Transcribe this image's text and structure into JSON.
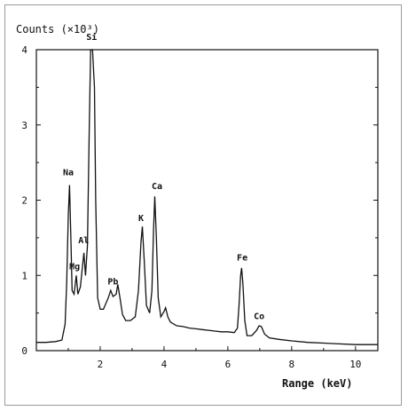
{
  "chart_data": {
    "type": "line",
    "title": "",
    "ylabel": "Counts (×10³)",
    "xlabel": "Range (keV)",
    "xlim": [
      0,
      10.7
    ],
    "ylim": [
      0,
      4
    ],
    "x_ticks": [
      2,
      4,
      6,
      8,
      10
    ],
    "y_ticks": [
      0,
      1,
      2,
      3,
      4
    ],
    "grid": false,
    "series": [
      {
        "points": [
          [
            0.0,
            0.11
          ],
          [
            0.3,
            0.11
          ],
          [
            0.6,
            0.12
          ],
          [
            0.8,
            0.14
          ],
          [
            0.9,
            0.35
          ],
          [
            0.95,
            0.9
          ],
          [
            1.0,
            1.8
          ],
          [
            1.04,
            2.2
          ],
          [
            1.08,
            1.5
          ],
          [
            1.12,
            0.8
          ],
          [
            1.18,
            0.75
          ],
          [
            1.25,
            1.0
          ],
          [
            1.3,
            0.75
          ],
          [
            1.38,
            0.85
          ],
          [
            1.44,
            1.1
          ],
          [
            1.49,
            1.3
          ],
          [
            1.54,
            1.0
          ],
          [
            1.6,
            1.4
          ],
          [
            1.66,
            3.0
          ],
          [
            1.7,
            4.0
          ],
          [
            1.76,
            4.0
          ],
          [
            1.82,
            3.5
          ],
          [
            1.86,
            2.0
          ],
          [
            1.92,
            0.7
          ],
          [
            2.0,
            0.55
          ],
          [
            2.1,
            0.55
          ],
          [
            2.25,
            0.7
          ],
          [
            2.33,
            0.8
          ],
          [
            2.4,
            0.72
          ],
          [
            2.5,
            0.75
          ],
          [
            2.55,
            0.88
          ],
          [
            2.62,
            0.7
          ],
          [
            2.7,
            0.48
          ],
          [
            2.8,
            0.4
          ],
          [
            2.95,
            0.4
          ],
          [
            3.1,
            0.45
          ],
          [
            3.2,
            0.8
          ],
          [
            3.28,
            1.45
          ],
          [
            3.32,
            1.65
          ],
          [
            3.38,
            1.2
          ],
          [
            3.45,
            0.6
          ],
          [
            3.55,
            0.5
          ],
          [
            3.62,
            0.8
          ],
          [
            3.67,
            1.6
          ],
          [
            3.71,
            2.05
          ],
          [
            3.76,
            1.5
          ],
          [
            3.82,
            0.7
          ],
          [
            3.9,
            0.45
          ],
          [
            4.0,
            0.52
          ],
          [
            4.05,
            0.57
          ],
          [
            4.12,
            0.45
          ],
          [
            4.2,
            0.38
          ],
          [
            4.4,
            0.33
          ],
          [
            4.6,
            0.32
          ],
          [
            4.8,
            0.3
          ],
          [
            5.0,
            0.29
          ],
          [
            5.2,
            0.28
          ],
          [
            5.4,
            0.27
          ],
          [
            5.6,
            0.26
          ],
          [
            5.8,
            0.25
          ],
          [
            6.0,
            0.25
          ],
          [
            6.2,
            0.24
          ],
          [
            6.3,
            0.3
          ],
          [
            6.35,
            0.6
          ],
          [
            6.4,
            1.0
          ],
          [
            6.43,
            1.1
          ],
          [
            6.47,
            0.9
          ],
          [
            6.53,
            0.4
          ],
          [
            6.6,
            0.2
          ],
          [
            6.75,
            0.2
          ],
          [
            6.9,
            0.27
          ],
          [
            6.98,
            0.33
          ],
          [
            7.05,
            0.32
          ],
          [
            7.15,
            0.22
          ],
          [
            7.3,
            0.17
          ],
          [
            7.6,
            0.15
          ],
          [
            8.0,
            0.13
          ],
          [
            8.5,
            0.11
          ],
          [
            9.0,
            0.1
          ],
          [
            9.5,
            0.09
          ],
          [
            10.0,
            0.08
          ],
          [
            10.4,
            0.08
          ],
          [
            10.7,
            0.08
          ]
        ]
      }
    ],
    "annotations": [
      {
        "text": "Si",
        "x": 1.73,
        "y": 4.13
      },
      {
        "text": "Na",
        "x": 1.0,
        "y": 2.33
      },
      {
        "text": "Al",
        "x": 1.48,
        "y": 1.43
      },
      {
        "text": "Mg",
        "x": 1.2,
        "y": 1.08
      },
      {
        "text": "Pb",
        "x": 2.4,
        "y": 0.88
      },
      {
        "text": "K",
        "x": 3.28,
        "y": 1.72
      },
      {
        "text": "Ca",
        "x": 3.78,
        "y": 2.15
      },
      {
        "text": "Fe",
        "x": 6.45,
        "y": 1.2
      },
      {
        "text": "Co",
        "x": 6.98,
        "y": 0.42
      }
    ]
  }
}
